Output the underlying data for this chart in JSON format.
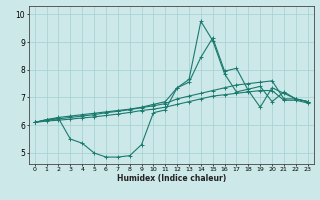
{
  "title": "",
  "xlabel": "Humidex (Indice chaleur)",
  "bg_color": "#cce8e8",
  "grid_color": "#aad4d4",
  "line_color": "#1a7a6e",
  "xlim": [
    -0.5,
    23.5
  ],
  "ylim": [
    4.6,
    10.3
  ],
  "yticks": [
    5,
    6,
    7,
    8,
    9,
    10
  ],
  "xticks": [
    0,
    1,
    2,
    3,
    4,
    5,
    6,
    7,
    8,
    9,
    10,
    11,
    12,
    13,
    14,
    15,
    16,
    17,
    18,
    19,
    20,
    21,
    22,
    23
  ],
  "lines": [
    {
      "x": [
        0,
        1,
        2,
        3,
        4,
        5,
        6,
        7,
        8,
        9,
        10,
        11,
        12,
        13,
        14,
        15,
        16,
        17,
        18,
        19,
        20,
        21,
        22,
        23
      ],
      "y": [
        6.1,
        6.2,
        6.25,
        5.5,
        5.35,
        5.0,
        4.85,
        4.85,
        4.9,
        5.3,
        6.45,
        6.55,
        7.35,
        7.55,
        8.45,
        9.15,
        7.95,
        8.05,
        7.25,
        6.65,
        7.35,
        7.15,
        6.95,
        6.85
      ]
    },
    {
      "x": [
        0,
        1,
        2,
        3,
        4,
        5,
        6,
        7,
        8,
        9,
        10,
        11,
        12,
        13,
        14,
        15,
        16,
        17,
        18,
        19,
        20,
        21,
        22,
        23
      ],
      "y": [
        6.1,
        6.2,
        6.28,
        6.33,
        6.38,
        6.43,
        6.48,
        6.53,
        6.58,
        6.65,
        6.75,
        6.85,
        7.35,
        7.65,
        9.75,
        9.05,
        7.85,
        7.2,
        7.3,
        7.4,
        6.85,
        7.2,
        6.95,
        6.85
      ]
    },
    {
      "x": [
        0,
        1,
        2,
        3,
        4,
        5,
        6,
        7,
        8,
        9,
        10,
        11,
        12,
        13,
        14,
        15,
        16,
        17,
        18,
        19,
        20,
        21,
        22,
        23
      ],
      "y": [
        6.1,
        6.18,
        6.23,
        6.28,
        6.33,
        6.38,
        6.45,
        6.5,
        6.56,
        6.63,
        6.7,
        6.78,
        6.95,
        7.05,
        7.15,
        7.25,
        7.35,
        7.45,
        7.5,
        7.55,
        7.6,
        6.95,
        6.95,
        6.85
      ]
    },
    {
      "x": [
        0,
        1,
        2,
        3,
        4,
        5,
        6,
        7,
        8,
        9,
        10,
        11,
        12,
        13,
        14,
        15,
        16,
        17,
        18,
        19,
        20,
        21,
        22,
        23
      ],
      "y": [
        6.1,
        6.15,
        6.18,
        6.22,
        6.26,
        6.3,
        6.35,
        6.4,
        6.46,
        6.53,
        6.58,
        6.65,
        6.75,
        6.85,
        6.95,
        7.05,
        7.1,
        7.15,
        7.2,
        7.25,
        7.25,
        6.9,
        6.9,
        6.8
      ]
    }
  ]
}
